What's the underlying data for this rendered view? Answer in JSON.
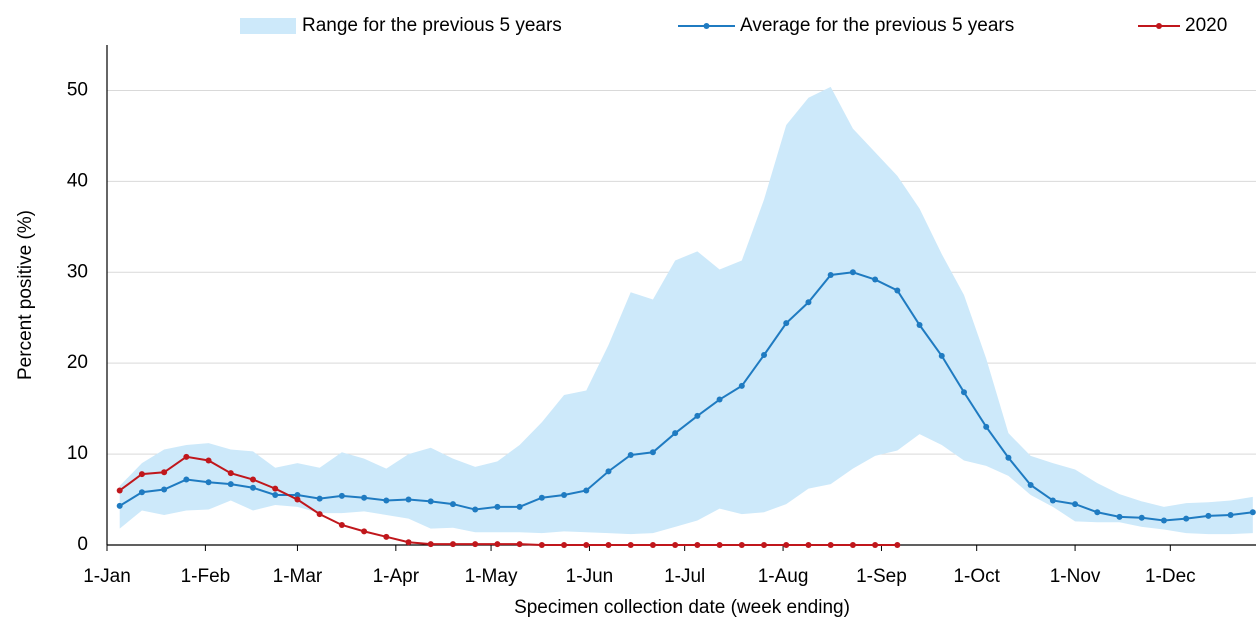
{
  "chart_data": {
    "type": "line",
    "x_label": "Specimen collection date (week ending)",
    "y_label": "Percent positive (%)",
    "x": [
      4,
      11,
      18,
      25,
      32,
      39,
      46,
      53,
      60,
      67,
      74,
      81,
      88,
      95,
      102,
      109,
      116,
      123,
      130,
      137,
      144,
      151,
      158,
      165,
      172,
      179,
      186,
      193,
      200,
      207,
      214,
      221,
      228,
      235,
      242,
      249,
      256,
      263,
      270,
      277,
      284,
      291,
      298,
      305,
      312,
      319,
      326,
      333,
      340,
      347,
      354,
      361
    ],
    "xlim": [
      0,
      362
    ],
    "xticks": [
      {
        "value": 0,
        "label": "1-Jan"
      },
      {
        "value": 31,
        "label": "1-Feb"
      },
      {
        "value": 60,
        "label": "1-Mar"
      },
      {
        "value": 91,
        "label": "1-Apr"
      },
      {
        "value": 121,
        "label": "1-May"
      },
      {
        "value": 152,
        "label": "1-Jun"
      },
      {
        "value": 182,
        "label": "1-Jul"
      },
      {
        "value": 213,
        "label": "1-Aug"
      },
      {
        "value": 244,
        "label": "1-Sep"
      },
      {
        "value": 274,
        "label": "1-Oct"
      },
      {
        "value": 305,
        "label": "1-Nov"
      },
      {
        "value": 335,
        "label": "1-Dec"
      }
    ],
    "ylim": [
      0,
      55
    ],
    "yticks": [
      0,
      10,
      20,
      30,
      40,
      50
    ],
    "grid": true,
    "series": [
      {
        "name": "Range for the previous 5 years",
        "kind": "range",
        "color": "#cde9fa",
        "values": [
          6.5,
          9,
          10.5,
          11,
          11.2,
          10.5,
          10.3,
          8.5,
          9,
          8.5,
          10.2,
          9.5,
          8.4,
          10,
          10.7,
          9.5,
          8.6,
          9.2,
          11,
          13.5,
          16.5,
          17,
          22,
          27.8,
          27,
          31.3,
          32.3,
          30.3,
          31.3,
          38,
          46.2,
          49.2,
          50.4,
          45.8,
          43.2,
          40.6,
          37,
          32,
          27.5,
          20.5,
          12.3,
          9.8,
          9,
          8.3,
          6.8,
          5.6,
          4.8,
          4.2,
          4.6,
          4.7,
          4.9,
          5.3
        ],
        "low": [
          1.8,
          3.8,
          3.3,
          3.8,
          3.9,
          4.9,
          3.8,
          4.4,
          4.2,
          3.5,
          3.5,
          3.7,
          3.3,
          2.9,
          1.8,
          1.9,
          1.4,
          1.4,
          1.4,
          1.3,
          1.5,
          1.4,
          1.3,
          1.2,
          1.3,
          2.0,
          2.7,
          4.0,
          3.4,
          3.6,
          4.5,
          6.2,
          6.7,
          8.4,
          9.8,
          10.4,
          12.2,
          11.0,
          9.3,
          8.7,
          7.6,
          5.5,
          4.2,
          2.6,
          2.5,
          2.5,
          2.0,
          1.7,
          1.3,
          1.2,
          1.2,
          1.3
        ]
      },
      {
        "name": "Average for the previous 5 years",
        "color": "#1f7bc1",
        "values": [
          4.3,
          5.8,
          6.1,
          7.2,
          6.9,
          6.7,
          6.3,
          5.5,
          5.5,
          5.1,
          5.4,
          5.2,
          4.9,
          5.0,
          4.8,
          4.5,
          3.9,
          4.2,
          4.2,
          5.2,
          5.5,
          6.0,
          8.1,
          9.9,
          10.2,
          12.3,
          14.2,
          16.0,
          17.5,
          20.9,
          24.4,
          26.7,
          29.7,
          30.0,
          29.2,
          28.0,
          24.2,
          20.8,
          16.8,
          13.0,
          9.6,
          6.6,
          4.9,
          4.5,
          3.6,
          3.1,
          3.0,
          2.7,
          2.9,
          3.2,
          3.3,
          3.6
        ]
      },
      {
        "name": "2020",
        "color": "#c0171c",
        "values": [
          6.0,
          7.8,
          8.0,
          9.7,
          9.3,
          7.9,
          7.2,
          6.2,
          5.0,
          3.4,
          2.2,
          1.5,
          0.9,
          0.3,
          0.1,
          0.1,
          0.1,
          0.1,
          0.1,
          0,
          0,
          0,
          0,
          0,
          0,
          0,
          0,
          0,
          0,
          0,
          0,
          0,
          0,
          0,
          0,
          0,
          null,
          null,
          null,
          null,
          null,
          null,
          null,
          null,
          null,
          null,
          null,
          null,
          null,
          null,
          null,
          null
        ]
      }
    ]
  }
}
